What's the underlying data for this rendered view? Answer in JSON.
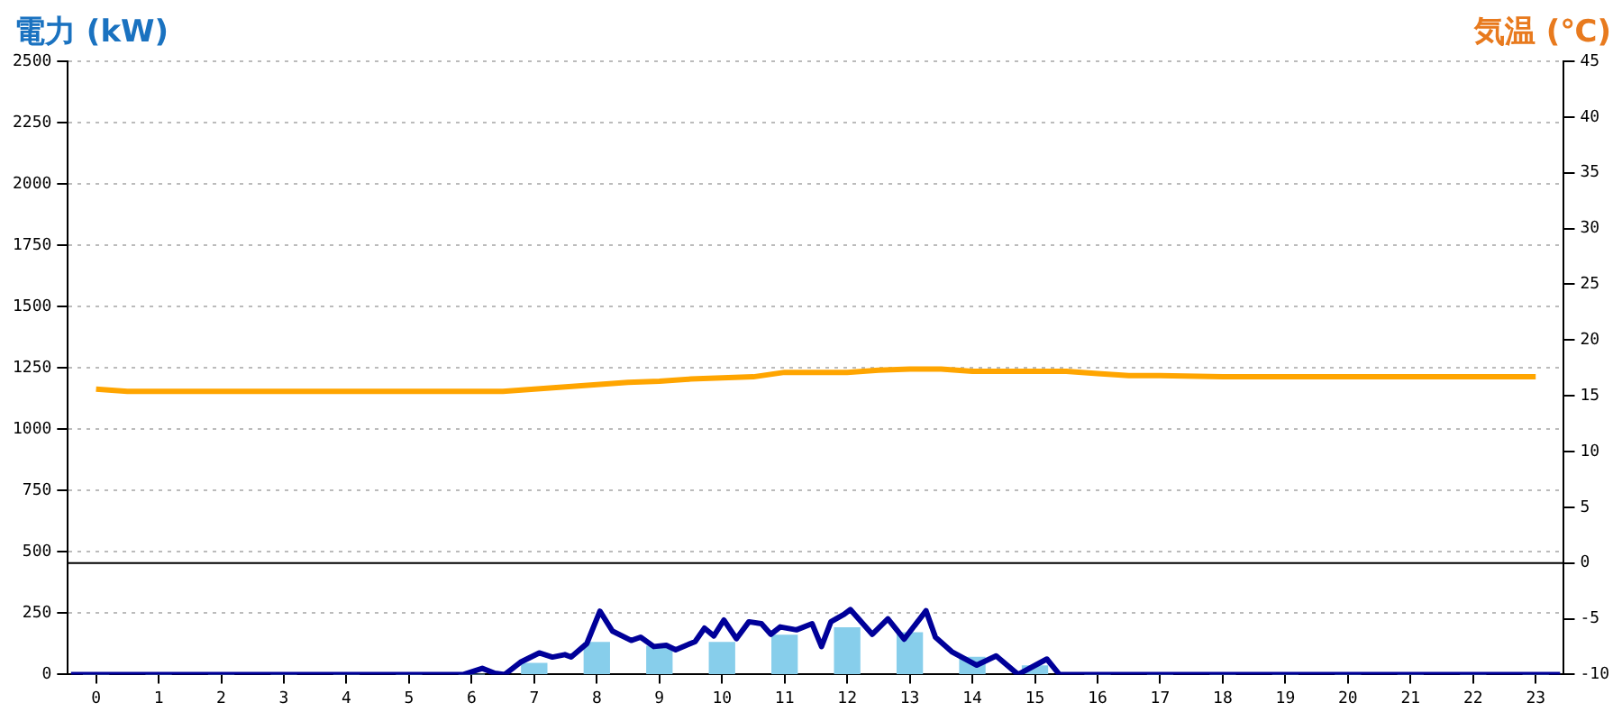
{
  "chart_data": {
    "type": "bar",
    "ylabel": "電力 (kW)",
    "y2label": "気温 (℃)",
    "xlim": [
      -0.45,
      23.45
    ],
    "xticks": [
      0,
      1,
      2,
      3,
      4,
      5,
      6,
      7,
      8,
      9,
      10,
      11,
      12,
      13,
      14,
      15,
      16,
      17,
      18,
      19,
      20,
      21,
      22,
      23
    ],
    "ylim": [
      0,
      2500
    ],
    "yticks": [
      0,
      250,
      500,
      750,
      1000,
      1250,
      1500,
      1750,
      2000,
      2250,
      2500
    ],
    "y2lim": [
      -10,
      45
    ],
    "y2ticks": [
      -10,
      -5,
      0,
      5,
      10,
      15,
      20,
      25,
      30,
      35,
      40,
      45
    ],
    "grid": "y",
    "legend": false,
    "ref_lines": [
      {
        "axis": "y2",
        "value": 0,
        "color": "#000000"
      }
    ],
    "series": [
      {
        "type": "bar",
        "color": "#87ceeb",
        "x": [
          0,
          1,
          2,
          3,
          4,
          5,
          6,
          7,
          8,
          9,
          10,
          11,
          12,
          13,
          14,
          15,
          16,
          17,
          18,
          19,
          20,
          21,
          22,
          23
        ],
        "values": [
          0,
          0,
          0,
          0,
          0,
          0,
          0,
          45,
          130,
          115,
          130,
          160,
          190,
          170,
          70,
          35,
          0,
          0,
          0,
          0,
          0,
          0,
          0,
          0
        ]
      },
      {
        "type": "line",
        "color": "#000099",
        "x": [
          -0.4,
          5.87,
          6.17,
          6.37,
          6.53,
          6.78,
          7.08,
          7.29,
          7.49,
          7.59,
          7.84,
          8.05,
          8.25,
          8.55,
          8.7,
          8.91,
          9.11,
          9.26,
          9.57,
          9.72,
          9.87,
          10.03,
          10.23,
          10.43,
          10.63,
          10.78,
          10.93,
          11.19,
          11.44,
          11.59,
          11.74,
          11.95,
          12.05,
          12.4,
          12.65,
          12.91,
          13.26,
          13.41,
          13.67,
          14.07,
          14.38,
          14.73,
          15.19,
          15.39,
          23.39
        ],
        "values": [
          0,
          0,
          25,
          5,
          0,
          50,
          88,
          71,
          81,
          71,
          126,
          258,
          177,
          139,
          152,
          114,
          119,
          101,
          134,
          189,
          157,
          222,
          146,
          215,
          207,
          164,
          194,
          182,
          207,
          114,
          215,
          245,
          265,
          164,
          227,
          144,
          260,
          152,
          93,
          38,
          76,
          0,
          63,
          0,
          0
        ]
      },
      {
        "type": "line",
        "axis": "y2",
        "color": "#ffa500",
        "x": [
          0,
          0.5,
          1,
          2,
          3,
          4,
          5,
          6,
          6.5,
          7,
          7.5,
          8,
          8.5,
          9,
          9.5,
          10,
          10.5,
          11,
          11.5,
          12,
          12.5,
          13,
          13.5,
          14,
          15,
          15.5,
          16,
          16.5,
          17,
          18,
          19,
          20,
          21,
          22,
          23
        ],
        "values": [
          15.6,
          15.4,
          15.4,
          15.4,
          15.4,
          15.4,
          15.4,
          15.4,
          15.4,
          15.6,
          15.8,
          16.0,
          16.2,
          16.3,
          16.5,
          16.6,
          16.7,
          17.1,
          17.1,
          17.1,
          17.3,
          17.4,
          17.4,
          17.2,
          17.2,
          17.2,
          17.0,
          16.8,
          16.8,
          16.7,
          16.7,
          16.7,
          16.7,
          16.7,
          16.7
        ]
      }
    ]
  }
}
